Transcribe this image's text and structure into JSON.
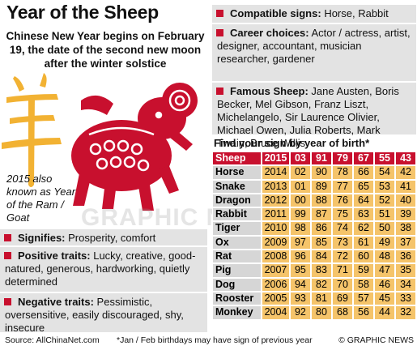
{
  "header": {
    "title": "Year of the Sheep",
    "subtitle": "Chinese New Year begins on February 19, the date of the second new moon after the winter solstice"
  },
  "illustration": {
    "caption": "2015 also known as Year of the Ram / Goat",
    "watermark": "GRAPHIC NEWS"
  },
  "facts": [
    {
      "label": "Signifies:",
      "text": "Prosperity, comfort"
    },
    {
      "label": "Positive traits:",
      "text": "Lucky, creative, good-natured, generous, hardworking, quietly determined"
    },
    {
      "label": "Negative traits:",
      "text": "Pessimistic, oversensitive, easily discouraged, shy, insecure"
    }
  ],
  "details": [
    {
      "label": "Compatible signs:",
      "text": "Horse, Rabbit"
    },
    {
      "label": "Career choices:",
      "text": "Actor / actress, artist, designer, accountant, musician researcher, gardener"
    },
    {
      "label": "Famous Sheep:",
      "text": "Jane Austen, Boris Becker, Mel Gibson, Franz Liszt, Michelangelo, Sir Laurence Olivier, Michael Owen, Julia Roberts, Mark Twain, Bruce Willis"
    }
  ],
  "table": {
    "title": "Find your sign by year of birth*",
    "header": [
      "Sheep",
      "2015",
      "03",
      "91",
      "79",
      "67",
      "55",
      "43"
    ],
    "rows": [
      [
        "Horse",
        "2014",
        "02",
        "90",
        "78",
        "66",
        "54",
        "42"
      ],
      [
        "Snake",
        "2013",
        "01",
        "89",
        "77",
        "65",
        "53",
        "41"
      ],
      [
        "Dragon",
        "2012",
        "00",
        "88",
        "76",
        "64",
        "52",
        "40"
      ],
      [
        "Rabbit",
        "2011",
        "99",
        "87",
        "75",
        "63",
        "51",
        "39"
      ],
      [
        "Tiger",
        "2010",
        "98",
        "86",
        "74",
        "62",
        "50",
        "38"
      ],
      [
        "Ox",
        "2009",
        "97",
        "85",
        "73",
        "61",
        "49",
        "37"
      ],
      [
        "Rat",
        "2008",
        "96",
        "84",
        "72",
        "60",
        "48",
        "36"
      ],
      [
        "Pig",
        "2007",
        "95",
        "83",
        "71",
        "59",
        "47",
        "35"
      ],
      [
        "Dog",
        "2006",
        "94",
        "82",
        "70",
        "58",
        "46",
        "34"
      ],
      [
        "Rooster",
        "2005",
        "93",
        "81",
        "69",
        "57",
        "45",
        "33"
      ],
      [
        "Monkey",
        "2004",
        "92",
        "80",
        "68",
        "56",
        "44",
        "32"
      ]
    ]
  },
  "footer": {
    "source": "Source: AllChinaNet.com",
    "note": "*Jan / Feb birthdays may have sign of previous year",
    "credit": "© GRAPHIC NEWS"
  }
}
